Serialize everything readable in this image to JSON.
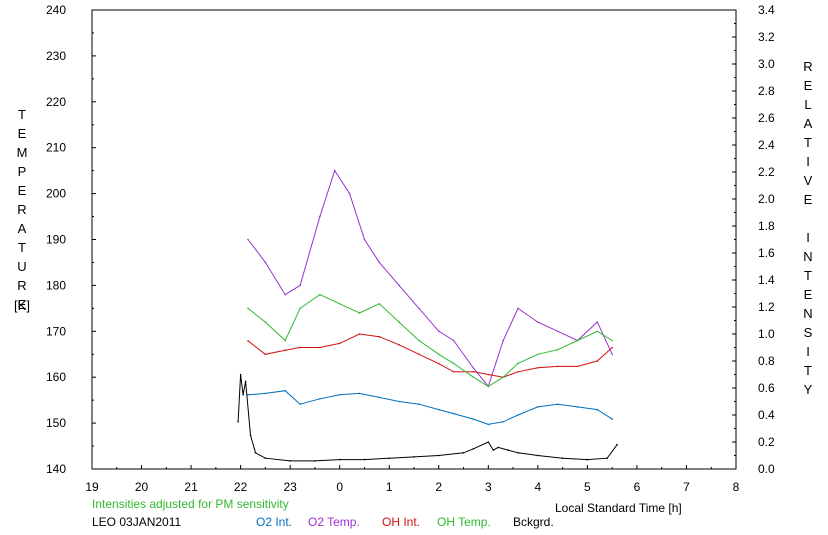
{
  "chart_data": {
    "type": "line",
    "left_axis_label": "TEMPERATURE",
    "left_axis_unit": "[K]",
    "right_axis_label": "RELATIVE INTENSITY",
    "xlabel": "Local Standard Time [h]",
    "xlim": [
      19,
      32
    ],
    "ylim_left": [
      140,
      240
    ],
    "ylim_right": [
      0.0,
      3.4
    ],
    "x_ticks": [
      "19",
      "20",
      "21",
      "22",
      "23",
      "0",
      "1",
      "2",
      "3",
      "4",
      "5",
      "6",
      "7",
      "8"
    ],
    "y_ticks_left": [
      "140",
      "150",
      "160",
      "170",
      "180",
      "190",
      "200",
      "210",
      "220",
      "230",
      "240"
    ],
    "y_ticks_right": [
      "0.0",
      "0.2",
      "0.4",
      "0.6",
      "0.8",
      "1.0",
      "1.2",
      "1.4",
      "1.6",
      "1.8",
      "2.0",
      "2.2",
      "2.4",
      "2.6",
      "2.8",
      "3.0",
      "3.2",
      "3.4"
    ],
    "grid": false,
    "note": "Intensities adjusted for PM sensitivity",
    "station": "LEO 03JAN2011",
    "series": [
      {
        "name": "O2 Int.",
        "color": "#0070c0",
        "axis": "right",
        "x": [
          22.15,
          22.5,
          22.9,
          23.2,
          23.6,
          24.0,
          24.4,
          24.8,
          25.2,
          25.6,
          26.0,
          26.3,
          26.7,
          27.0,
          27.3,
          27.6,
          28.0,
          28.4,
          28.8,
          29.2,
          29.5
        ],
        "y": [
          0.55,
          0.56,
          0.58,
          0.48,
          0.52,
          0.55,
          0.56,
          0.53,
          0.5,
          0.48,
          0.44,
          0.41,
          0.37,
          0.33,
          0.35,
          0.4,
          0.46,
          0.48,
          0.46,
          0.44,
          0.37
        ]
      },
      {
        "name": "O2 Temp.",
        "color": "#9b30d0",
        "axis": "left",
        "x": [
          22.15,
          22.5,
          22.9,
          23.2,
          23.6,
          23.9,
          24.2,
          24.5,
          24.8,
          25.2,
          25.6,
          26.0,
          26.3,
          26.7,
          27.0,
          27.3,
          27.6,
          28.0,
          28.4,
          28.8,
          29.2,
          29.5
        ],
        "y": [
          190,
          185,
          178,
          180,
          195,
          205,
          200,
          190,
          185,
          180,
          175,
          170,
          168,
          162,
          158,
          168,
          175,
          172,
          170,
          168,
          172,
          165
        ]
      },
      {
        "name": "OH Int.",
        "color": "#d01010",
        "axis": "right",
        "x": [
          22.15,
          22.5,
          22.9,
          23.2,
          23.6,
          24.0,
          24.4,
          24.8,
          25.2,
          25.6,
          26.0,
          26.3,
          26.7,
          27.0,
          27.3,
          27.6,
          28.0,
          28.4,
          28.8,
          29.2,
          29.5
        ],
        "y": [
          0.95,
          0.85,
          0.88,
          0.9,
          0.9,
          0.93,
          1.0,
          0.98,
          0.92,
          0.85,
          0.78,
          0.72,
          0.72,
          0.7,
          0.68,
          0.72,
          0.75,
          0.76,
          0.76,
          0.8,
          0.9
        ]
      },
      {
        "name": "OH Temp.",
        "color": "#30b830",
        "axis": "left",
        "x": [
          22.15,
          22.5,
          22.9,
          23.2,
          23.6,
          24.0,
          24.4,
          24.8,
          25.2,
          25.6,
          26.0,
          26.3,
          26.7,
          27.0,
          27.3,
          27.6,
          28.0,
          28.4,
          28.8,
          29.2,
          29.5
        ],
        "y": [
          175,
          172,
          168,
          175,
          178,
          176,
          174,
          176,
          172,
          168,
          165,
          163,
          160,
          158,
          160,
          163,
          165,
          166,
          168,
          170,
          168
        ]
      },
      {
        "name": "Bckgrd.",
        "color": "#000000",
        "axis": "right",
        "x": [
          21.95,
          22.0,
          22.05,
          22.1,
          22.2,
          22.3,
          22.5,
          23.0,
          23.5,
          24.0,
          24.5,
          25.0,
          25.5,
          26.0,
          26.5,
          26.7,
          27.0,
          27.1,
          27.2,
          27.4,
          27.6,
          28.0,
          28.5,
          29.0,
          29.4,
          29.6
        ],
        "y": [
          0.35,
          0.7,
          0.55,
          0.65,
          0.25,
          0.12,
          0.08,
          0.06,
          0.06,
          0.07,
          0.07,
          0.08,
          0.09,
          0.1,
          0.12,
          0.15,
          0.2,
          0.14,
          0.16,
          0.14,
          0.12,
          0.1,
          0.08,
          0.07,
          0.08,
          0.18
        ]
      }
    ]
  }
}
